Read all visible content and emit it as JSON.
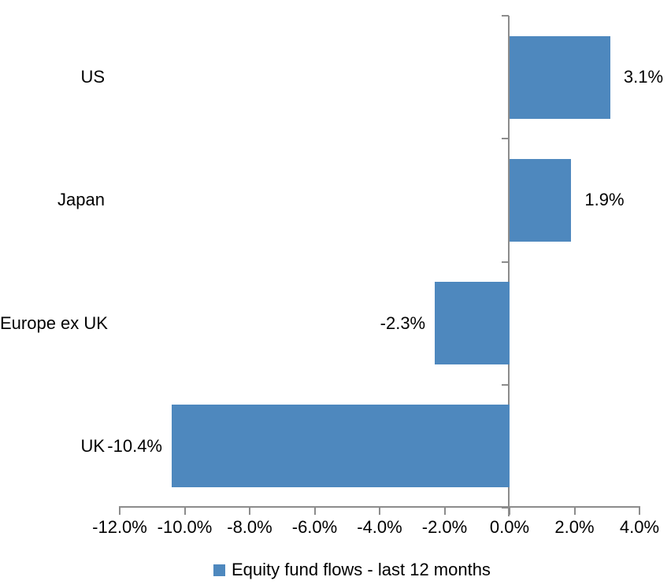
{
  "chart_data": {
    "type": "bar",
    "orientation": "horizontal",
    "title": "",
    "categories": [
      "US",
      "Japan",
      "Europe ex UK",
      "UK"
    ],
    "series": [
      {
        "name": "Equity fund flows - last 12 months",
        "values": [
          3.1,
          1.9,
          -2.3,
          -10.4
        ],
        "value_labels": [
          "3.1%",
          "1.9%",
          "-2.3%",
          "-10.4%"
        ]
      }
    ],
    "xlabel": "",
    "ylabel": "",
    "xlim": [
      -12,
      4
    ],
    "x_tick_labels": [
      "-12.0%",
      "-10.0%",
      "-8.0%",
      "-6.0%",
      "-4.0%",
      "-2.0%",
      "0.0%",
      "2.0%",
      "4.0%"
    ],
    "grid": false,
    "legend_position": "bottom",
    "legend_label": "Equity fund flows - last 12 months",
    "colors": {
      "bar": "#4E88BE",
      "axis": "#8C8C8C",
      "text": "#000000",
      "background": "#FFFFFF"
    }
  }
}
